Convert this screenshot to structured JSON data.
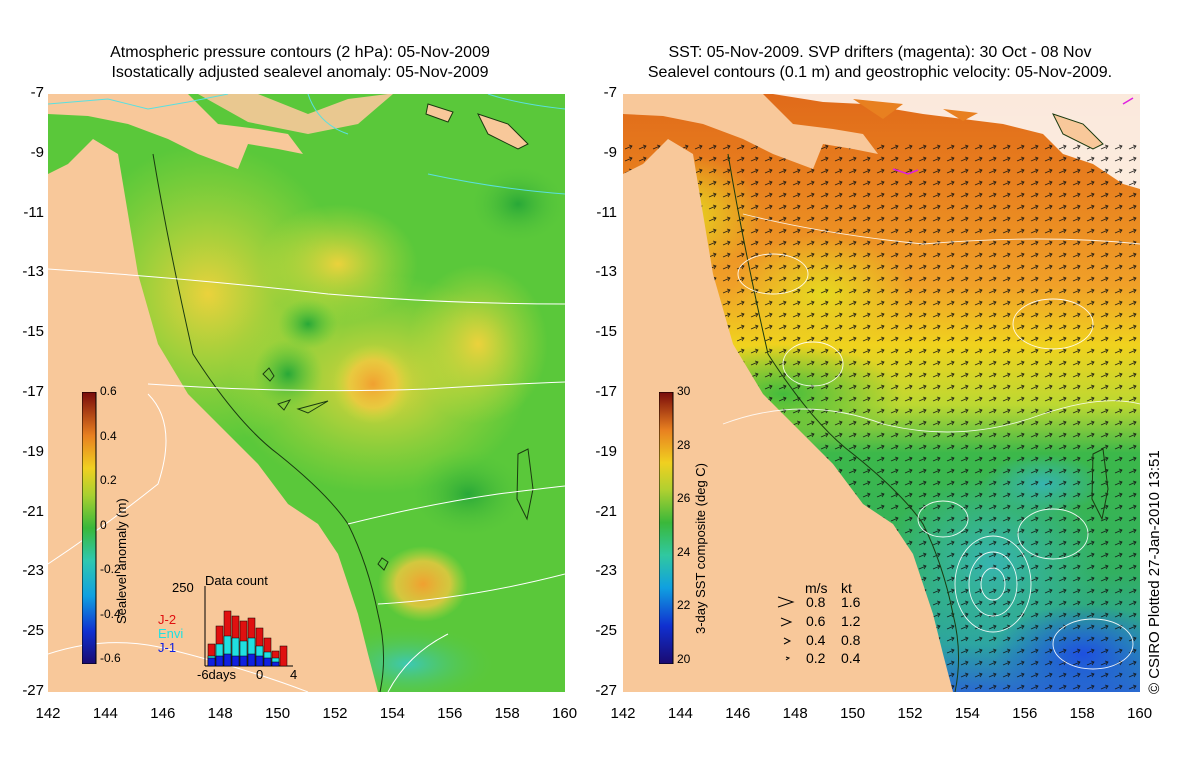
{
  "left_panel": {
    "title_line1": "Atmospheric pressure contours (2 hPa): 05-Nov-2009",
    "title_line2": "Isostatically adjusted sealevel anomaly: 05-Nov-2009",
    "colorbar_label": "Sealevel anomaly (m)",
    "colorbar_ticks": [
      "0.6",
      "0.4",
      "0.2",
      "0",
      "-0.2",
      "-0.4",
      "-0.6"
    ],
    "data_count": {
      "label": "Data count",
      "max_label": "250",
      "x_labels": [
        "-6days",
        "0",
        "4"
      ],
      "satellites": [
        "J-2",
        "Envi",
        "J-1"
      ]
    }
  },
  "right_panel": {
    "title_line1": "SST: 05-Nov-2009. SVP drifters (magenta): 30 Oct - 08 Nov",
    "title_line2": "Sealevel contours (0.1 m) and geostrophic velocity: 05-Nov-2009.",
    "colorbar_label": "3-day SST composite (deg C)",
    "colorbar_ticks": [
      "30",
      "28",
      "26",
      "24",
      "22",
      "20"
    ],
    "velocity_legend": {
      "header_ms": "m/s",
      "header_kt": "kt",
      "rows": [
        {
          "ms": "0.8",
          "kt": "1.6"
        },
        {
          "ms": "0.6",
          "kt": "1.2"
        },
        {
          "ms": "0.4",
          "kt": "0.8"
        },
        {
          "ms": "0.2",
          "kt": "0.4"
        }
      ]
    }
  },
  "axes": {
    "y_ticks": [
      "-7",
      "-9",
      "-11",
      "-13",
      "-15",
      "-17",
      "-19",
      "-21",
      "-23",
      "-25",
      "-27"
    ],
    "x_ticks": [
      "142",
      "144",
      "146",
      "148",
      "150",
      "152",
      "154",
      "156",
      "158",
      "160"
    ]
  },
  "credit": "© CSIRO Plotted 27-Jan-2010 13:51",
  "colors": {
    "land": "#f8c89a",
    "sla_background": "#5ac83a",
    "sst_warm": "#e8801e",
    "sst_mid": "#f0d21e",
    "sst_cool": "#32b850"
  }
}
